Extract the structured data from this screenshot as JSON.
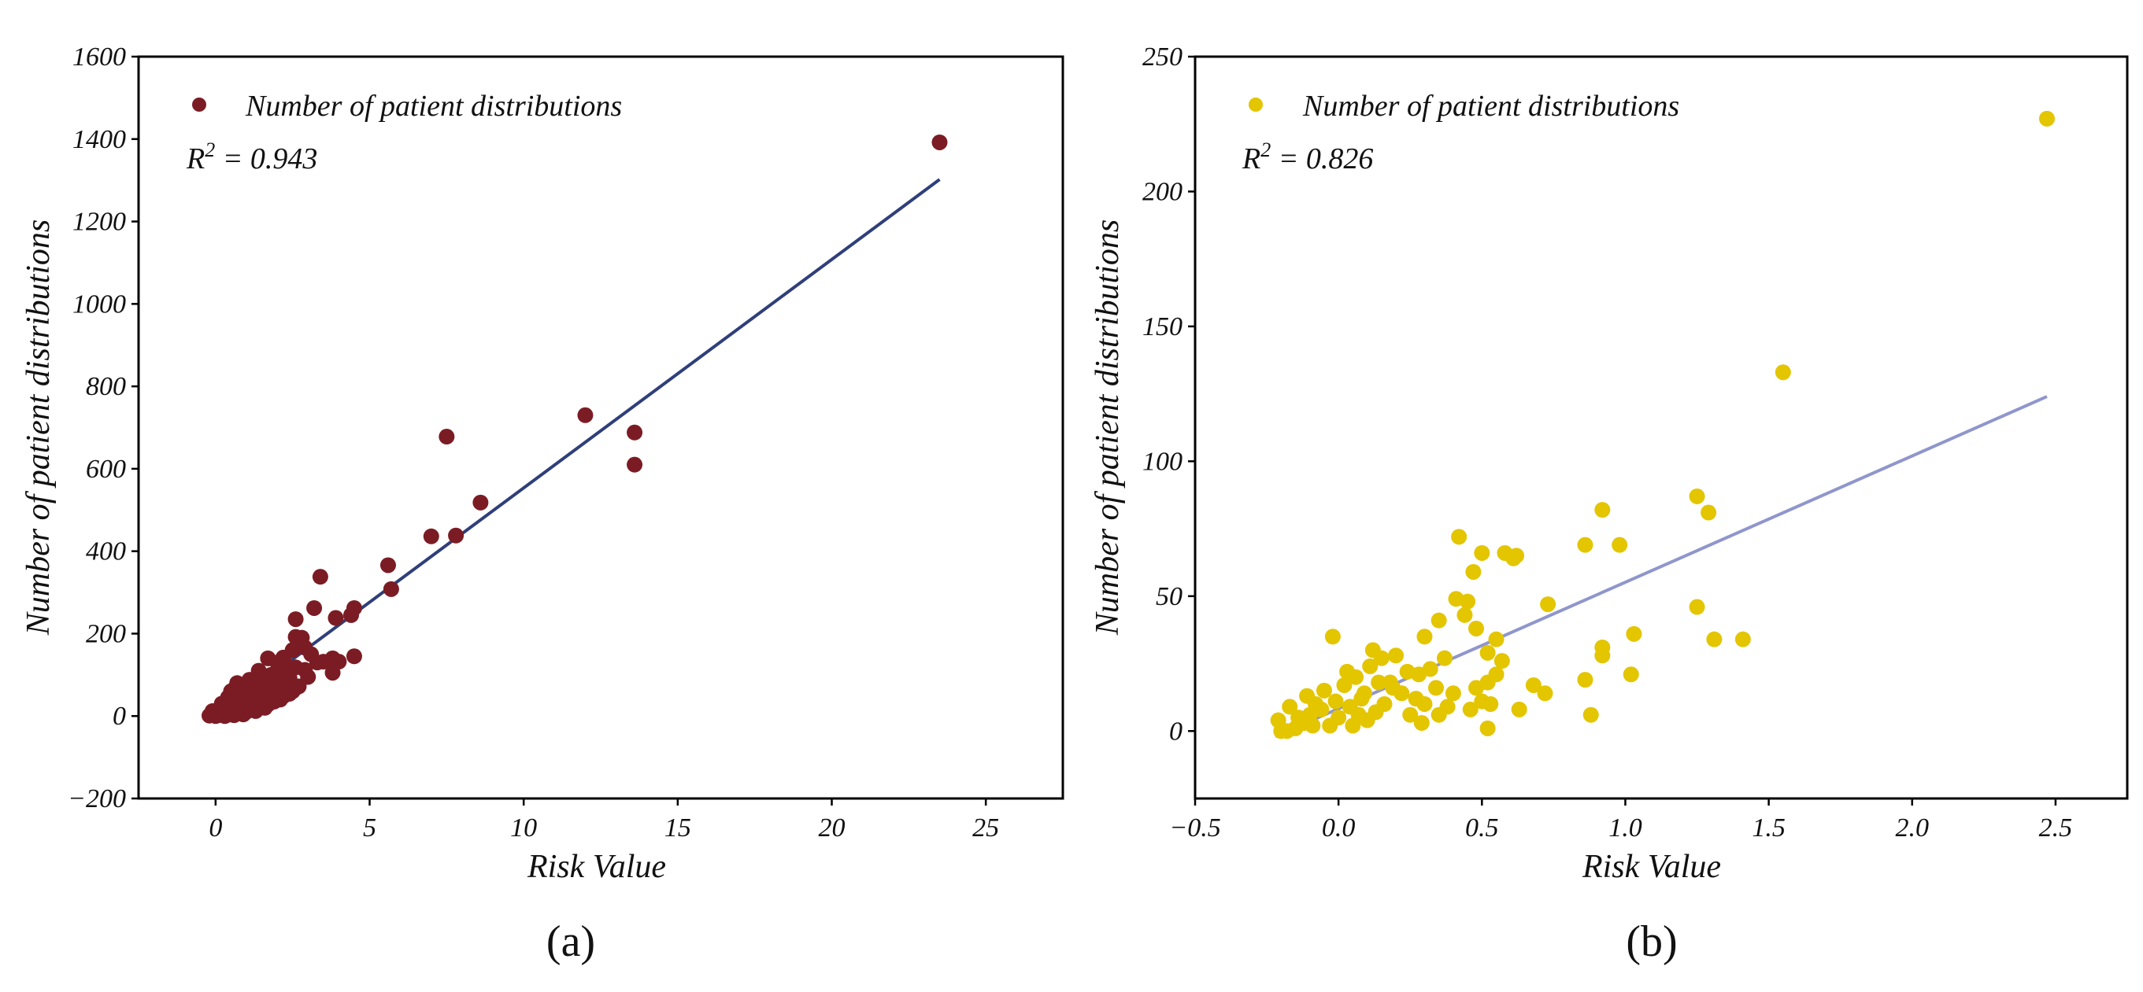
{
  "chart_data": [
    {
      "type": "scatter",
      "id": "a",
      "caption": "(a)",
      "xlabel": "Risk Value",
      "ylabel": "Number of patient distributions",
      "xlim": [
        -2.5,
        27.5
      ],
      "ylim": [
        -200,
        1600
      ],
      "xticks": [
        0,
        5,
        10,
        15,
        20,
        25
      ],
      "xtick_labels": [
        "0",
        "5",
        "10",
        "15",
        "20",
        "25"
      ],
      "yticks": [
        -200,
        0,
        200,
        400,
        600,
        800,
        1000,
        1200,
        1400,
        1600
      ],
      "ytick_labels": [
        "−200",
        "0",
        "200",
        "400",
        "600",
        "800",
        "1000",
        "1200",
        "1400",
        "1600"
      ],
      "legend": {
        "label": "Number of patient distributions",
        "position": "top-left"
      },
      "r2_label": {
        "base": "R",
        "sup": "2",
        "rest": " = 0.943"
      },
      "point_color": "#7b1c24",
      "fit_color": "#2f3f7a",
      "fit": {
        "x": [
          -0.2,
          23.5
        ],
        "y": [
          -12,
          1302
        ]
      },
      "series": [
        {
          "name": "Number of patient distributions",
          "points": [
            [
              23.5,
              1392
            ],
            [
              12.0,
              730
            ],
            [
              13.6,
              688
            ],
            [
              13.6,
              610
            ],
            [
              7.5,
              678
            ],
            [
              8.6,
              518
            ],
            [
              7.0,
              436
            ],
            [
              7.8,
              438
            ],
            [
              5.6,
              366
            ],
            [
              5.7,
              308
            ],
            [
              3.4,
              338
            ],
            [
              3.2,
              262
            ],
            [
              4.5,
              262
            ],
            [
              4.4,
              245
            ],
            [
              3.9,
              238
            ],
            [
              3.8,
              140
            ],
            [
              4.5,
              145
            ],
            [
              4.0,
              132
            ],
            [
              3.8,
              105
            ],
            [
              3.3,
              130
            ],
            [
              3.5,
              132
            ],
            [
              2.6,
              235
            ],
            [
              2.6,
              192
            ],
            [
              2.8,
              190
            ],
            [
              2.9,
              166
            ],
            [
              2.5,
              160
            ],
            [
              2.2,
              142
            ],
            [
              1.7,
              140
            ],
            [
              2.0,
              130
            ],
            [
              2.3,
              120
            ],
            [
              2.6,
              118
            ],
            [
              1.4,
              110
            ],
            [
              1.8,
              100
            ],
            [
              2.1,
              96
            ],
            [
              2.4,
              92
            ],
            [
              1.1,
              88
            ],
            [
              1.5,
              82
            ],
            [
              1.9,
              80
            ],
            [
              2.2,
              75
            ],
            [
              2.6,
              68
            ],
            [
              0.7,
              80
            ],
            [
              0.9,
              70
            ],
            [
              1.3,
              66
            ],
            [
              1.6,
              62
            ],
            [
              2.0,
              58
            ],
            [
              2.4,
              54
            ],
            [
              2.5,
              60
            ],
            [
              0.5,
              60
            ],
            [
              0.8,
              52
            ],
            [
              1.2,
              48
            ],
            [
              1.5,
              44
            ],
            [
              1.8,
              42
            ],
            [
              2.1,
              40
            ],
            [
              0.4,
              45
            ],
            [
              0.6,
              40
            ],
            [
              0.9,
              36
            ],
            [
              1.1,
              33
            ],
            [
              1.4,
              30
            ],
            [
              1.7,
              28
            ],
            [
              0.3,
              32
            ],
            [
              0.5,
              28
            ],
            [
              0.7,
              24
            ],
            [
              1.0,
              22
            ],
            [
              1.2,
              20
            ],
            [
              0.2,
              22
            ],
            [
              0.4,
              18
            ],
            [
              0.6,
              15
            ],
            [
              0.8,
              12
            ],
            [
              1.0,
              10
            ],
            [
              0.1,
              14
            ],
            [
              0.3,
              10
            ],
            [
              0.5,
              8
            ],
            [
              0.0,
              8
            ],
            [
              0.2,
              5
            ],
            [
              0.4,
              3
            ],
            [
              -0.1,
              4
            ],
            [
              0.1,
              2
            ],
            [
              -0.2,
              1
            ],
            [
              0.0,
              0
            ],
            [
              0.3,
              0
            ],
            [
              0.6,
              2
            ],
            [
              0.9,
              4
            ],
            [
              1.3,
              12
            ],
            [
              1.6,
              20
            ],
            [
              1.9,
              35
            ],
            [
              2.2,
              48
            ],
            [
              2.7,
              72
            ],
            [
              3.0,
              95
            ],
            [
              3.1,
              150
            ],
            [
              2.9,
              112
            ],
            [
              1.0,
              58
            ],
            [
              1.3,
              72
            ],
            [
              0.8,
              30
            ],
            [
              0.2,
              30
            ],
            [
              -0.1,
              12
            ],
            [
              0.6,
              65
            ]
          ]
        }
      ]
    },
    {
      "type": "scatter",
      "id": "b",
      "caption": "(b)",
      "xlabel": "Risk Value",
      "ylabel": "Number of patient distributions",
      "xlim": [
        -0.5,
        2.75
      ],
      "ylim": [
        -25,
        250
      ],
      "xticks": [
        -0.5,
        0.0,
        0.5,
        1.0,
        1.5,
        2.0,
        2.5
      ],
      "xtick_labels": [
        "−0.5",
        "0.0",
        "0.5",
        "1.0",
        "1.5",
        "2.0",
        "2.5"
      ],
      "yticks": [
        0,
        50,
        100,
        150,
        200,
        250
      ],
      "ytick_labels": [
        "0",
        "50",
        "100",
        "150",
        "200",
        "250"
      ],
      "legend": {
        "label": "Number of patient distributions",
        "position": "top-left"
      },
      "r2_label": {
        "base": "R",
        "sup": "2",
        "rest": " = 0.826"
      },
      "point_color": "#e3c500",
      "fit_color": "#8f96cc",
      "fit": {
        "x": [
          -0.22,
          2.47
        ],
        "y": [
          -2,
          124
        ]
      },
      "series": [
        {
          "name": "Number of patient distributions",
          "points": [
            [
              2.47,
              227
            ],
            [
              1.55,
              133
            ],
            [
              1.25,
              87
            ],
            [
              1.29,
              81
            ],
            [
              0.92,
              82
            ],
            [
              0.98,
              69
            ],
            [
              0.86,
              69
            ],
            [
              1.25,
              46
            ],
            [
              1.03,
              36
            ],
            [
              1.31,
              34
            ],
            [
              1.41,
              34
            ],
            [
              1.02,
              21
            ],
            [
              0.88,
              6
            ],
            [
              0.92,
              28
            ],
            [
              0.86,
              19
            ],
            [
              0.92,
              31
            ],
            [
              0.73,
              47
            ],
            [
              0.68,
              17
            ],
            [
              0.72,
              14
            ],
            [
              0.63,
              8
            ],
            [
              0.42,
              72
            ],
            [
              0.47,
              59
            ],
            [
              0.5,
              66
            ],
            [
              0.58,
              66
            ],
            [
              0.61,
              64
            ],
            [
              0.62,
              65
            ],
            [
              0.41,
              49
            ],
            [
              0.45,
              48
            ],
            [
              0.44,
              43
            ],
            [
              0.48,
              38
            ],
            [
              0.55,
              34
            ],
            [
              0.52,
              29
            ],
            [
              0.57,
              26
            ],
            [
              0.55,
              21
            ],
            [
              0.52,
              18
            ],
            [
              0.48,
              16
            ],
            [
              0.5,
              11
            ],
            [
              0.53,
              10
            ],
            [
              0.46,
              8
            ],
            [
              0.52,
              1
            ],
            [
              0.35,
              41
            ],
            [
              0.3,
              35
            ],
            [
              0.37,
              27
            ],
            [
              0.32,
              23
            ],
            [
              0.28,
              21
            ],
            [
              0.34,
              16
            ],
            [
              0.4,
              14
            ],
            [
              0.3,
              10
            ],
            [
              0.35,
              6
            ],
            [
              0.38,
              9
            ],
            [
              -0.02,
              35
            ],
            [
              0.12,
              30
            ],
            [
              0.15,
              27
            ],
            [
              0.2,
              28
            ],
            [
              0.24,
              22
            ],
            [
              0.18,
              18
            ],
            [
              0.22,
              14
            ],
            [
              0.27,
              12
            ],
            [
              0.16,
              10
            ],
            [
              0.13,
              7
            ],
            [
              0.1,
              4
            ],
            [
              0.05,
              2
            ],
            [
              0.08,
              12
            ],
            [
              0.02,
              17
            ],
            [
              0.06,
              20
            ],
            [
              -0.05,
              15
            ],
            [
              -0.08,
              10
            ],
            [
              -0.1,
              6
            ],
            [
              -0.12,
              3
            ],
            [
              -0.15,
              1
            ],
            [
              -0.18,
              0
            ],
            [
              -0.2,
              0
            ],
            [
              -0.14,
              5
            ],
            [
              -0.06,
              8
            ],
            [
              0.0,
              5
            ],
            [
              0.04,
              9
            ],
            [
              0.09,
              14
            ],
            [
              0.14,
              18
            ],
            [
              -0.03,
              2
            ],
            [
              -0.17,
              9
            ],
            [
              -0.21,
              4
            ],
            [
              -0.11,
              13
            ],
            [
              -0.01,
              11
            ],
            [
              0.03,
              22
            ],
            [
              0.11,
              24
            ],
            [
              0.19,
              16
            ],
            [
              0.25,
              6
            ],
            [
              0.29,
              3
            ],
            [
              0.07,
              6
            ],
            [
              -0.09,
              2
            ]
          ]
        }
      ]
    }
  ]
}
